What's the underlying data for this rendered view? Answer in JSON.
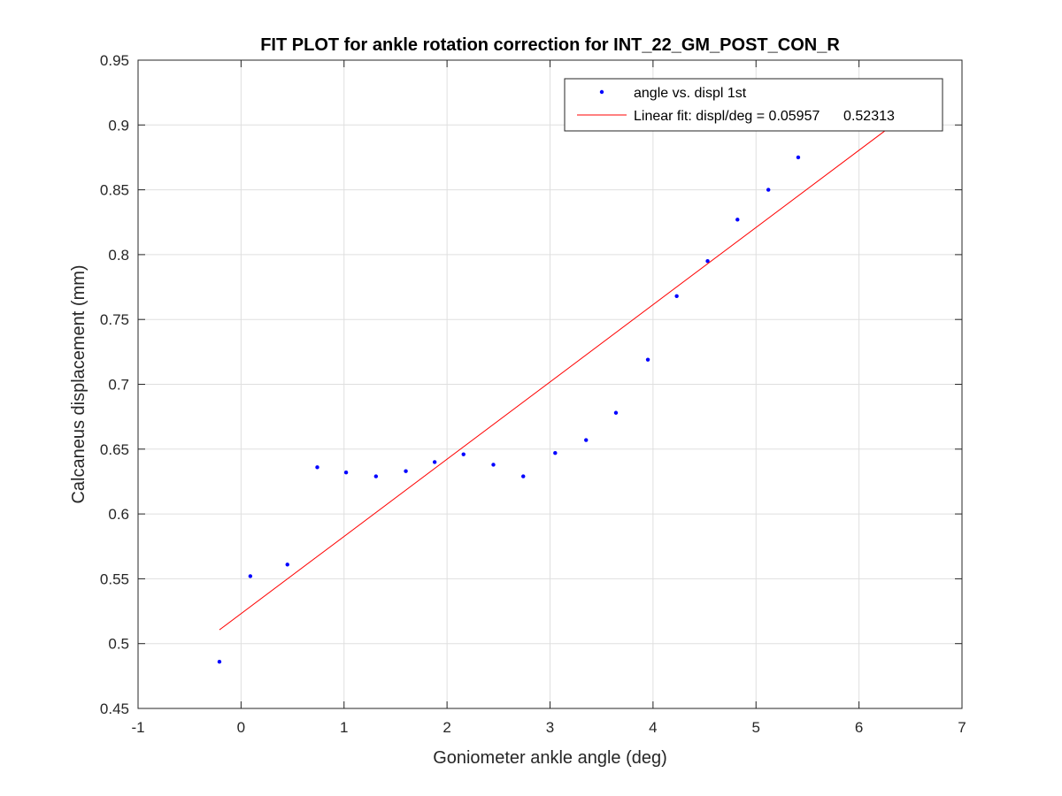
{
  "chart_data": {
    "type": "scatter",
    "title": "FIT PLOT for ankle rotation correction for INT_22_GM_POST_CON_R",
    "xlabel": "Goniometer ankle angle (deg)",
    "ylabel": "Calcaneus displacement (mm)",
    "xlim": [
      -1,
      7
    ],
    "ylim": [
      0.45,
      0.95
    ],
    "xticks": [
      -1,
      0,
      1,
      2,
      3,
      4,
      5,
      6,
      7
    ],
    "xtick_labels": [
      "-1",
      "0",
      "1",
      "2",
      "3",
      "4",
      "5",
      "6",
      "7"
    ],
    "yticks": [
      0.45,
      0.5,
      0.55,
      0.6,
      0.65,
      0.7,
      0.75,
      0.8,
      0.85,
      0.9,
      0.95
    ],
    "ytick_labels": [
      "0.45",
      "0.5",
      "0.55",
      "0.6",
      "0.65",
      "0.7",
      "0.75",
      "0.8",
      "0.85",
      "0.9",
      "0.95"
    ],
    "grid": true,
    "legend_position": "top-right",
    "series": [
      {
        "name": "angle vs. displ 1st",
        "kind": "points",
        "color": "#0000ff",
        "x": [
          -0.21,
          0.09,
          0.45,
          0.74,
          1.02,
          1.31,
          1.6,
          1.88,
          2.16,
          2.45,
          2.74,
          3.05,
          3.35,
          3.64,
          3.95,
          4.23,
          4.53,
          4.82,
          5.12,
          5.41
        ],
        "y": [
          0.486,
          0.552,
          0.561,
          0.636,
          0.632,
          0.629,
          0.633,
          0.64,
          0.646,
          0.638,
          0.629,
          0.647,
          0.657,
          0.678,
          0.719,
          0.768,
          0.795,
          0.827,
          0.85,
          0.875
        ]
      },
      {
        "name": "Linear fit: displ/deg = 0.05957      0.52313",
        "kind": "line",
        "color": "#ff0000",
        "x": [
          -0.21,
          6.25
        ],
        "y": [
          0.5106,
          0.8954
        ]
      }
    ]
  }
}
